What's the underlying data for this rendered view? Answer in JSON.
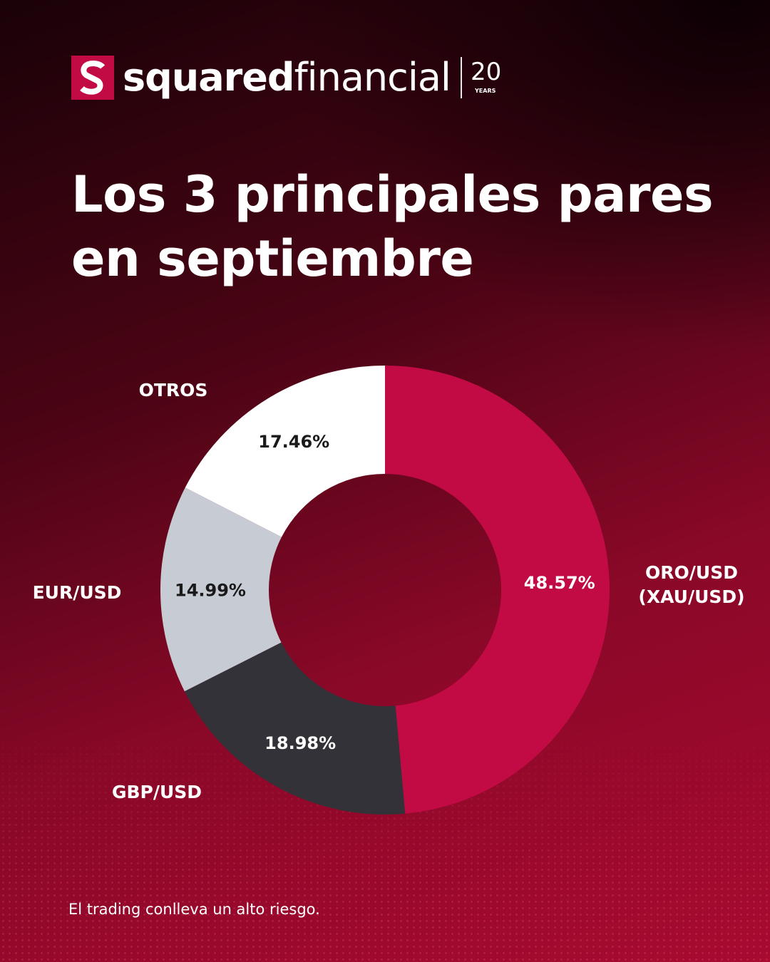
{
  "brand": {
    "name_bold": "squared",
    "name_regular": "financial",
    "anniversary_number": "20",
    "anniversary_word": "YEARS"
  },
  "title": {
    "line1": "Los 3 principales pares",
    "line2": "en septiembre"
  },
  "colors": {
    "accent": "#C20B45",
    "dark_gray": "#333238",
    "light_gray": "#C7CBD3",
    "white": "#FFFFFF"
  },
  "chart_data": {
    "type": "pie",
    "title": "Los 3 principales pares en septiembre",
    "categories": [
      "ORO/USD (XAU/USD)",
      "GBP/USD",
      "EUR/USD",
      "OTROS"
    ],
    "values": [
      48.57,
      18.98,
      14.99,
      17.46
    ],
    "value_labels": [
      "48.57%",
      "18.98%",
      "14.99%",
      "17.46%"
    ],
    "category_label_lines": [
      [
        "ORO/USD",
        "(XAU/USD)"
      ],
      [
        "GBP/USD"
      ],
      [
        "EUR/USD"
      ],
      [
        "OTROS"
      ]
    ],
    "colors": [
      "#C20B45",
      "#333238",
      "#C7CBD3",
      "#FFFFFF"
    ],
    "value_label_colors": [
      "#FFFFFF",
      "#FFFFFF",
      "#1A1A1A",
      "#1A1A1A"
    ],
    "start": "12 o'clock",
    "direction": "clockwise",
    "donut": true
  },
  "footer": {
    "disclaimer": "El trading conlleva un alto riesgo."
  }
}
